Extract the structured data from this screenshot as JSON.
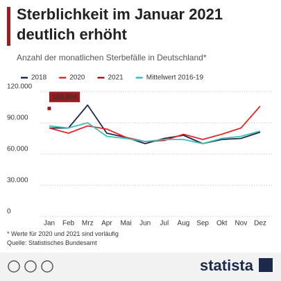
{
  "chart_data": {
    "type": "line",
    "title": "Sterblichkeit im Januar 2021 deutlich erhöht",
    "subtitle": "Anzahl der monatlichen Sterbefälle in Deutschland*",
    "categories": [
      "Jan",
      "Feb",
      "Mrz",
      "Apr",
      "Mai",
      "Jun",
      "Jul",
      "Aug",
      "Sep",
      "Okt",
      "Nov",
      "Dez"
    ],
    "series": [
      {
        "name": "2018",
        "color": "#1b2a4a",
        "values": [
          85000,
          85000,
          107000,
          80000,
          76000,
          70000,
          75000,
          78000,
          70000,
          74000,
          75000,
          81000
        ]
      },
      {
        "name": "2020",
        "color": "#e0272c",
        "values": [
          85000,
          80000,
          87000,
          84000,
          76000,
          72000,
          73000,
          79000,
          74000,
          79000,
          85000,
          106000
        ]
      },
      {
        "name": "2021",
        "color": "#9b1b1e",
        "values": [
          103804,
          null,
          null,
          null,
          null,
          null,
          null,
          null,
          null,
          null,
          null,
          null
        ],
        "value_labels": [
          "103.804",
          null,
          null,
          null,
          null,
          null,
          null,
          null,
          null,
          null,
          null,
          null
        ]
      },
      {
        "name": "Mittelwert 2016-19",
        "color": "#3dbdb5",
        "values": [
          87000,
          85000,
          90000,
          77000,
          75000,
          72000,
          74000,
          74000,
          70000,
          75000,
          77000,
          82000
        ]
      }
    ],
    "ylim": [
      0,
      120000
    ],
    "yticks": [
      0,
      {
        "value": 30000,
        "label": "30.000"
      },
      {
        "value": 60000,
        "label": "60.000"
      },
      {
        "value": 90000,
        "label": "90.000"
      },
      {
        "value": 120000,
        "label": "120.000"
      }
    ],
    "grid": true,
    "footnote": "* Werte für 2020 und 2021 sind vorläufig",
    "source": "Quelle: Statistisches Bundesamt",
    "brand": "statista"
  }
}
